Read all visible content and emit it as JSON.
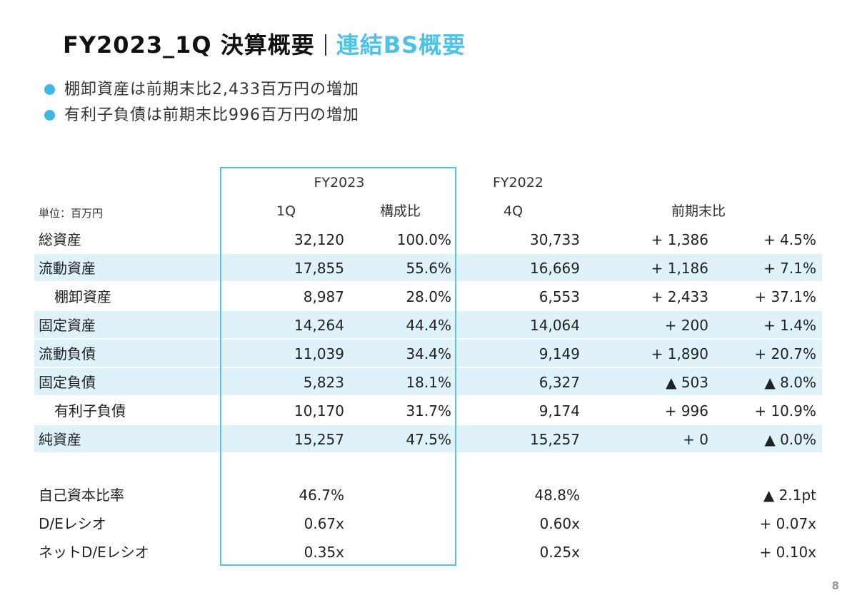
{
  "title": {
    "main": "FY2023_1Q 決算概要",
    "sub": "連結BS概要"
  },
  "bullets": [
    "棚卸資産は前期末比2,433百万円の増加",
    "有利子負債は前期末比996百万円の増加"
  ],
  "table": {
    "unit": "単位：百万円",
    "group_headers": {
      "fy2023": "FY2023",
      "fy2022": "FY2022"
    },
    "col_headers": {
      "q1": "1Q",
      "ratio": "構成比",
      "q4": "4Q",
      "change": "前期末比"
    },
    "rows": [
      {
        "label": "総資産",
        "q1": "32,120",
        "ratio": "100.0%",
        "q4": "30,733",
        "diff": "+ 1,386",
        "pct": "+ 4.5%"
      },
      {
        "label": "流動資産",
        "q1": "17,855",
        "ratio": "55.6%",
        "q4": "16,669",
        "diff": "+ 1,186",
        "pct": "+ 7.1%"
      },
      {
        "label": "棚卸資産",
        "q1": "8,987",
        "ratio": "28.0%",
        "q4": "6,553",
        "diff": "+ 2,433",
        "pct": "+ 37.1%"
      },
      {
        "label": "固定資産",
        "q1": "14,264",
        "ratio": "44.4%",
        "q4": "14,064",
        "diff": "+ 200",
        "pct": "+ 1.4%"
      },
      {
        "label": "流動負債",
        "q1": "11,039",
        "ratio": "34.4%",
        "q4": "9,149",
        "diff": "+ 1,890",
        "pct": "+ 20.7%"
      },
      {
        "label": "固定負債",
        "q1": "5,823",
        "ratio": "18.1%",
        "q4": "6,327",
        "diff": "▲ 503",
        "pct": "▲ 8.0%"
      },
      {
        "label": "有利子負債",
        "q1": "10,170",
        "ratio": "31.7%",
        "q4": "9,174",
        "diff": "+ 996",
        "pct": "+ 10.9%"
      },
      {
        "label": "純資産",
        "q1": "15,257",
        "ratio": "47.5%",
        "q4": "15,257",
        "diff": "+ 0",
        "pct": "▲ 0.0%"
      }
    ],
    "ratios": [
      {
        "label": "自己資本比率",
        "q1": "46.7%",
        "q4": "48.8%",
        "change": "▲ 2.1pt"
      },
      {
        "label": "D/Eレシオ",
        "q1": "0.67x",
        "q4": "0.60x",
        "change": "+ 0.07x"
      },
      {
        "label": "ネットD/Eレシオ",
        "q1": "0.35x",
        "q4": "0.25x",
        "change": "+ 0.10x"
      }
    ]
  },
  "page_number": "8",
  "colors": {
    "accent": "#4ec2e6",
    "band": "#dff2f9",
    "frame": "#5bc0e0"
  }
}
